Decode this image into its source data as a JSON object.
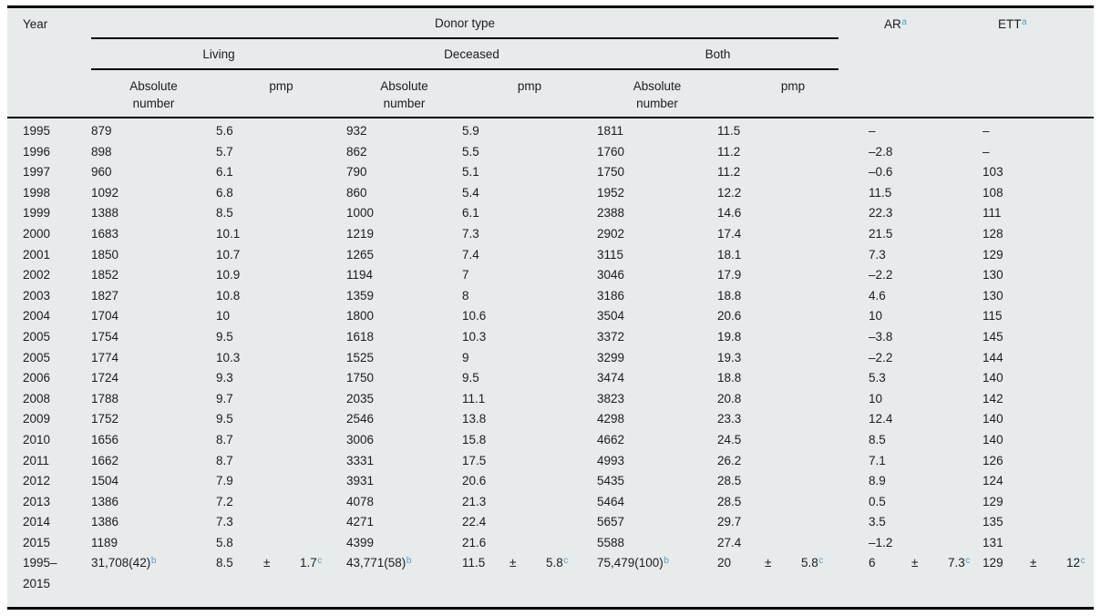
{
  "colors": {
    "table_background": "#e7ebec",
    "rule": "#000000",
    "text": "#1c1c1c",
    "footnote_marker": "#42a4d9"
  },
  "table": {
    "header": {
      "year": "Year",
      "donor_type": "Donor type",
      "living": "Living",
      "deceased": "Deceased",
      "both": "Both",
      "absolute_number": "Absolute number",
      "pmp": "pmp",
      "ar": "AR",
      "ar_sup": "a",
      "ett": "ETT",
      "ett_sup": "a"
    },
    "row_keys": [
      "year",
      "living_abs",
      "living_pmp",
      "deceased_abs",
      "deceased_pmp",
      "both_abs",
      "both_pmp",
      "ar",
      "ett"
    ],
    "rows": [
      {
        "year": "1995",
        "living_abs": "879",
        "living_pmp": "5.6",
        "deceased_abs": "932",
        "deceased_pmp": "5.9",
        "both_abs": "1811",
        "both_pmp": "11.5",
        "ar": "–",
        "ett": "–"
      },
      {
        "year": "1996",
        "living_abs": "898",
        "living_pmp": "5.7",
        "deceased_abs": "862",
        "deceased_pmp": "5.5",
        "both_abs": "1760",
        "both_pmp": "11.2",
        "ar": "–2.8",
        "ett": "–"
      },
      {
        "year": "1997",
        "living_abs": "960",
        "living_pmp": "6.1",
        "deceased_abs": "790",
        "deceased_pmp": "5.1",
        "both_abs": "1750",
        "both_pmp": "11.2",
        "ar": "–0.6",
        "ett": "103"
      },
      {
        "year": "1998",
        "living_abs": "1092",
        "living_pmp": "6.8",
        "deceased_abs": "860",
        "deceased_pmp": "5.4",
        "both_abs": "1952",
        "both_pmp": "12.2",
        "ar": "11.5",
        "ett": "108"
      },
      {
        "year": "1999",
        "living_abs": "1388",
        "living_pmp": "8.5",
        "deceased_abs": "1000",
        "deceased_pmp": "6.1",
        "both_abs": "2388",
        "both_pmp": "14.6",
        "ar": "22.3",
        "ett": "111"
      },
      {
        "year": "2000",
        "living_abs": "1683",
        "living_pmp": "10.1",
        "deceased_abs": "1219",
        "deceased_pmp": "7.3",
        "both_abs": "2902",
        "both_pmp": "17.4",
        "ar": "21.5",
        "ett": "128"
      },
      {
        "year": "2001",
        "living_abs": "1850",
        "living_pmp": "10.7",
        "deceased_abs": "1265",
        "deceased_pmp": "7.4",
        "both_abs": "3115",
        "both_pmp": "18.1",
        "ar": "7.3",
        "ett": "129"
      },
      {
        "year": "2002",
        "living_abs": "1852",
        "living_pmp": "10.9",
        "deceased_abs": "1194",
        "deceased_pmp": "7",
        "both_abs": "3046",
        "both_pmp": "17.9",
        "ar": "–2.2",
        "ett": "130"
      },
      {
        "year": "2003",
        "living_abs": "1827",
        "living_pmp": "10.8",
        "deceased_abs": "1359",
        "deceased_pmp": "8",
        "both_abs": "3186",
        "both_pmp": "18.8",
        "ar": "4.6",
        "ett": "130"
      },
      {
        "year": "2004",
        "living_abs": "1704",
        "living_pmp": "10",
        "deceased_abs": "1800",
        "deceased_pmp": "10.6",
        "both_abs": "3504",
        "both_pmp": "20.6",
        "ar": "10",
        "ett": "115"
      },
      {
        "year": "2005",
        "living_abs": "1754",
        "living_pmp": "9.5",
        "deceased_abs": "1618",
        "deceased_pmp": "10.3",
        "both_abs": "3372",
        "both_pmp": "19.8",
        "ar": "–3.8",
        "ett": "145"
      },
      {
        "year": "2005",
        "living_abs": "1774",
        "living_pmp": "10.3",
        "deceased_abs": "1525",
        "deceased_pmp": "9",
        "both_abs": "3299",
        "both_pmp": "19.3",
        "ar": "–2.2",
        "ett": "144"
      },
      {
        "year": "2006",
        "living_abs": "1724",
        "living_pmp": "9.3",
        "deceased_abs": "1750",
        "deceased_pmp": "9.5",
        "both_abs": "3474",
        "both_pmp": "18.8",
        "ar": "5.3",
        "ett": "140"
      },
      {
        "year": "2008",
        "living_abs": "1788",
        "living_pmp": "9.7",
        "deceased_abs": "2035",
        "deceased_pmp": "11.1",
        "both_abs": "3823",
        "both_pmp": "20.8",
        "ar": "10",
        "ett": "142"
      },
      {
        "year": "2009",
        "living_abs": "1752",
        "living_pmp": "9.5",
        "deceased_abs": "2546",
        "deceased_pmp": "13.8",
        "both_abs": "4298",
        "both_pmp": "23.3",
        "ar": "12.4",
        "ett": "140"
      },
      {
        "year": "2010",
        "living_abs": "1656",
        "living_pmp": "8.7",
        "deceased_abs": "3006",
        "deceased_pmp": "15.8",
        "both_abs": "4662",
        "both_pmp": "24.5",
        "ar": "8.5",
        "ett": "140"
      },
      {
        "year": "2011",
        "living_abs": "1662",
        "living_pmp": "8.7",
        "deceased_abs": "3331",
        "deceased_pmp": "17.5",
        "both_abs": "4993",
        "both_pmp": "26.2",
        "ar": "7.1",
        "ett": "126"
      },
      {
        "year": "2012",
        "living_abs": "1504",
        "living_pmp": "7.9",
        "deceased_abs": "3931",
        "deceased_pmp": "20.6",
        "both_abs": "5435",
        "both_pmp": "28.5",
        "ar": "8.9",
        "ett": "124"
      },
      {
        "year": "2013",
        "living_abs": "1386",
        "living_pmp": "7.2",
        "deceased_abs": "4078",
        "deceased_pmp": "21.3",
        "both_abs": "5464",
        "both_pmp": "28.5",
        "ar": "0.5",
        "ett": "129"
      },
      {
        "year": "2014",
        "living_abs": "1386",
        "living_pmp": "7.3",
        "deceased_abs": "4271",
        "deceased_pmp": "22.4",
        "both_abs": "5657",
        "both_pmp": "29.7",
        "ar": "3.5",
        "ett": "135"
      },
      {
        "year": "2015",
        "living_abs": "1189",
        "living_pmp": "5.8",
        "deceased_abs": "4399",
        "deceased_pmp": "21.6",
        "both_abs": "5588",
        "both_pmp": "27.4",
        "ar": "–1.2",
        "ett": "131"
      }
    ],
    "summary": {
      "year_range": "1995–2015",
      "living_abs": "31,708(42)",
      "living_abs_sup": "b",
      "living_pmp_val": "8.5",
      "living_pmp_sign": "±",
      "living_pmp_err": "1.7",
      "living_pmp_sup": "c",
      "deceased_abs": "43,771(58)",
      "deceased_abs_sup": "b",
      "deceased_pmp_val": "11.5",
      "deceased_pmp_sign": "±",
      "deceased_pmp_err": "5.8",
      "deceased_pmp_sup": "c",
      "both_abs": "75,479(100)",
      "both_abs_sup": "b",
      "both_pmp_val": "20",
      "both_pmp_sign": "±",
      "both_pmp_err": "5.8",
      "both_pmp_sup": "c",
      "ar_val": "6",
      "ar_sign": "±",
      "ar_err": "7.3",
      "ar_sup": "c",
      "ett_val": "129",
      "ett_sign": "±",
      "ett_err": "12",
      "ett_sup": "c"
    }
  }
}
